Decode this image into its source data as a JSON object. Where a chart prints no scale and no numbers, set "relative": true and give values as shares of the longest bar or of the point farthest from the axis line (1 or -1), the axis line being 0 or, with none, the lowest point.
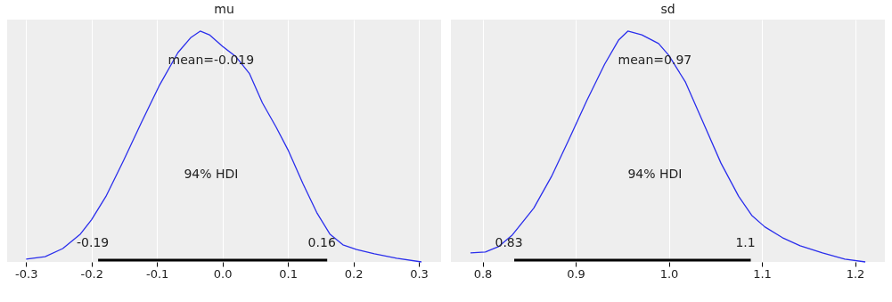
{
  "chart_data": [
    {
      "type": "line",
      "title": "mu",
      "relative": true,
      "xlim": [
        -0.329,
        0.334
      ],
      "xticks": [
        {
          "value": -0.3,
          "label": "-0.3"
        },
        {
          "value": -0.2,
          "label": "-0.2"
        },
        {
          "value": -0.1,
          "label": "-0.1"
        },
        {
          "value": 0.0,
          "label": "0.0"
        },
        {
          "value": 0.1,
          "label": "0.1"
        },
        {
          "value": 0.2,
          "label": "0.2"
        },
        {
          "value": 0.3,
          "label": "0.3"
        }
      ],
      "grid": "x",
      "tick_labels": "x",
      "series": [
        {
          "color": "#2a2eec",
          "x": [
            -0.3,
            -0.271,
            -0.244,
            -0.217,
            -0.2,
            -0.178,
            -0.151,
            -0.124,
            -0.096,
            -0.068,
            -0.048,
            -0.034,
            -0.02,
            0.0,
            0.02,
            0.041,
            0.061,
            0.082,
            0.1,
            0.123,
            0.144,
            0.164,
            0.184,
            0.205,
            0.232,
            0.266,
            0.304
          ],
          "values": [
            0.012,
            0.023,
            0.058,
            0.121,
            0.183,
            0.284,
            0.44,
            0.603,
            0.767,
            0.907,
            0.973,
            1,
            0.984,
            0.934,
            0.891,
            0.817,
            0.689,
            0.584,
            0.486,
            0.339,
            0.214,
            0.121,
            0.074,
            0.054,
            0.035,
            0.016,
            0
          ]
        },
        {
          "color": "#000000",
          "x": [
            -0.19,
            0.16
          ],
          "values": [
            0.008,
            0.008
          ]
        }
      ],
      "annotations": [
        "mean=-0.019",
        "94% HDI",
        {
          "text": "-0.19",
          "x": -0.19,
          "y": 0.008
        },
        {
          "text": "0.16",
          "x": 0.16,
          "y": 0.008
        }
      ]
    },
    {
      "type": "line",
      "title": "sd",
      "relative": true,
      "xlim": [
        0.766,
        1.232
      ],
      "xticks": [
        {
          "value": 0.8,
          "label": "0.8"
        },
        {
          "value": 0.9,
          "label": "0.9"
        },
        {
          "value": 1.0,
          "label": "1.0"
        },
        {
          "value": 1.1,
          "label": "1.1"
        },
        {
          "value": 1.2,
          "label": "1.2"
        }
      ],
      "grid": "x",
      "tick_labels": "x",
      "series": [
        {
          "color": "#2a2eec",
          "x": [
            0.787,
            0.803,
            0.817,
            0.832,
            0.855,
            0.874,
            0.893,
            0.912,
            0.931,
            0.946,
            0.956,
            0.971,
            0.989,
            1.0,
            1.018,
            1.037,
            1.056,
            1.075,
            1.089,
            1.103,
            1.122,
            1.141,
            1.165,
            1.189,
            1.211
          ],
          "values": [
            0.039,
            0.043,
            0.066,
            0.117,
            0.233,
            0.37,
            0.533,
            0.7,
            0.856,
            0.961,
            1,
            0.984,
            0.946,
            0.895,
            0.778,
            0.603,
            0.428,
            0.284,
            0.202,
            0.152,
            0.105,
            0.07,
            0.039,
            0.012,
            0
          ]
        },
        {
          "color": "#000000",
          "x": [
            0.834,
            1.088
          ],
          "values": [
            0.008,
            0.008
          ]
        }
      ],
      "annotations": [
        "mean=0.97",
        "94% HDI",
        {
          "text": "0.83",
          "x": 0.834,
          "y": 0.008
        },
        {
          "text": "1.1",
          "x": 1.088,
          "y": 0.008
        }
      ]
    }
  ]
}
